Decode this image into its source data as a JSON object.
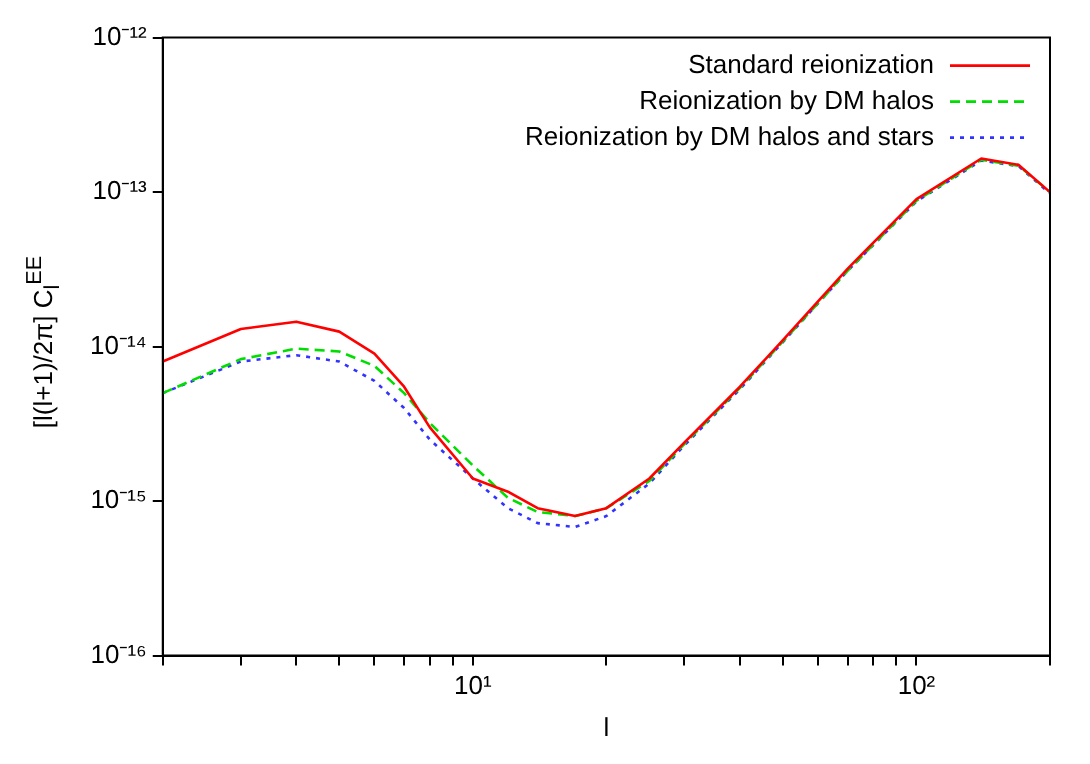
{
  "chart_data": {
    "type": "line",
    "xlabel": "l",
    "ylabel": "[l(l+1)/2π] C$_{l}$$^{EE}$",
    "log": "xy",
    "grid": false,
    "legend": "top right",
    "marker": "none",
    "xlim": [
      2,
      200
    ],
    "ylim": [
      1e-16,
      1e-12
    ],
    "xticks": [
      {
        "value": 2,
        "label": null
      },
      {
        "value": 3,
        "label": null
      },
      {
        "value": 4,
        "label": null
      },
      {
        "value": 5,
        "label": null
      },
      {
        "value": 6,
        "label": null
      },
      {
        "value": 7,
        "label": null
      },
      {
        "value": 8,
        "label": null
      },
      {
        "value": 9,
        "label": null
      },
      {
        "value": 10,
        "label": "10¹"
      },
      {
        "value": 20,
        "label": null
      },
      {
        "value": 30,
        "label": null
      },
      {
        "value": 40,
        "label": null
      },
      {
        "value": 50,
        "label": null
      },
      {
        "value": 60,
        "label": null
      },
      {
        "value": 70,
        "label": null
      },
      {
        "value": 80,
        "label": null
      },
      {
        "value": 90,
        "label": null
      },
      {
        "value": 100,
        "label": "10²"
      },
      {
        "value": 200,
        "label": null
      }
    ],
    "yticks": [
      {
        "value": 1e-16,
        "label": "10⁻¹⁶"
      },
      {
        "value": 1e-15,
        "label": "10⁻¹⁵"
      },
      {
        "value": 1e-14,
        "label": "10⁻¹⁴"
      },
      {
        "value": 1e-13,
        "label": "10⁻¹³"
      },
      {
        "value": 1e-12,
        "label": "10⁻¹²"
      }
    ],
    "x": [
      2,
      3,
      4,
      5,
      6,
      7,
      8,
      10,
      12,
      14,
      17,
      20,
      25,
      30,
      40,
      50,
      70,
      100,
      140,
      170,
      200
    ],
    "series": [
      {
        "name": "Standard reionization",
        "color": "#ff0000",
        "line_style": "solid",
        "values": [
          8e-15,
          1.3e-14,
          1.45e-14,
          1.25e-14,
          9e-15,
          5.5e-15,
          3e-15,
          1.4e-15,
          1.15e-15,
          9e-16,
          8e-16,
          9e-16,
          1.4e-15,
          2.4e-15,
          5.5e-15,
          1.1e-14,
          3.2e-14,
          9e-14,
          1.65e-13,
          1.5e-13,
          1e-13
        ]
      },
      {
        "name": "Reionization by DM halos",
        "color": "#00dd00",
        "line_style": "dashed",
        "values": [
          5e-15,
          8.3e-15,
          9.7e-15,
          9.3e-15,
          7.5e-15,
          5e-15,
          3.2e-15,
          1.7e-15,
          1.05e-15,
          8.5e-16,
          8e-16,
          9e-16,
          1.35e-15,
          2.35e-15,
          5.4e-15,
          1.08e-14,
          3.1e-14,
          8.8e-14,
          1.62e-13,
          1.48e-13,
          1e-13
        ]
      },
      {
        "name": "Reionization by DM halos and stars",
        "color": "#3333ff",
        "line_style": "dotted",
        "values": [
          5e-15,
          8e-15,
          8.8e-15,
          8e-15,
          6e-15,
          4e-15,
          2.5e-15,
          1.4e-15,
          9e-16,
          7.2e-16,
          6.8e-16,
          8e-16,
          1.3e-15,
          2.3e-15,
          5.3e-15,
          1.07e-14,
          3.1e-14,
          8.7e-14,
          1.6e-13,
          1.47e-13,
          9.8e-14
        ]
      }
    ]
  }
}
